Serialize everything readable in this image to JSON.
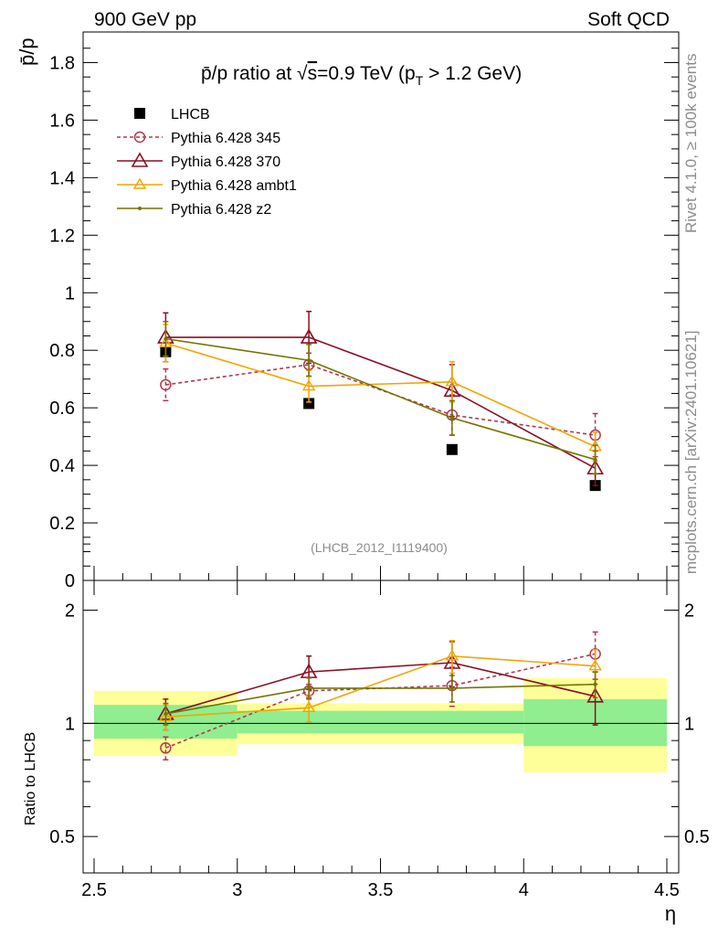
{
  "header": {
    "left": "900 GeV pp",
    "right": "Soft QCD"
  },
  "side": {
    "rivet": "Rivet 4.1.0, ≥ 100k events",
    "mcplots": "mcplots.cern.ch [arXiv:2401.10621]"
  },
  "colors": {
    "lhcb": "#000000",
    "p345": "#b0384f",
    "p370": "#8b0f24",
    "ambt1": "#f5a300",
    "z2": "#747400",
    "band_inner": "#90ee90",
    "band_outer": "#ffff99"
  },
  "chart_data": {
    "type": "scatter",
    "title_parts": {
      "prefix": "p̄/p ratio at √",
      "sqrt_arg": "s",
      "mid": "=0.9 TeV (p",
      "sub": "T",
      "suffix": " > 1.2 GeV)"
    },
    "ylabel": "p̄/p",
    "ratio_ylabel": "Ratio to LHCB",
    "xlabel": "η",
    "analysis_id": "(LHCB_2012_I1119400)",
    "xlim": [
      2.5,
      4.5
    ],
    "ylim": [
      0,
      1.9
    ],
    "ratio_ylim": [
      0.4,
      2.4
    ],
    "x_ticks": [
      "2.5",
      "3",
      "3.5",
      "4",
      "4.5"
    ],
    "y_ticks": [
      "0",
      "0.2",
      "0.4",
      "0.6",
      "0.8",
      "1",
      "1.2",
      "1.4",
      "1.6",
      "1.8"
    ],
    "ratio_ticks": [
      "0.5",
      "1",
      "2"
    ],
    "bins": [
      [
        2.5,
        3.0
      ],
      [
        3.0,
        3.5
      ],
      [
        3.5,
        4.0
      ],
      [
        4.0,
        4.5
      ]
    ],
    "series": [
      {
        "name": "LHCB",
        "key": "lhcb",
        "marker": "square",
        "dashed": false,
        "x": [
          2.75,
          3.25,
          3.75,
          4.25
        ],
        "y": [
          0.795,
          0.615,
          0.455,
          0.33
        ],
        "err": [
          0,
          0,
          0,
          0
        ]
      },
      {
        "name": "Pythia 6.428 345",
        "key": "p345",
        "marker": "circle",
        "dashed": true,
        "x": [
          2.75,
          3.25,
          3.75,
          4.25
        ],
        "y": [
          0.68,
          0.75,
          0.575,
          0.505
        ],
        "err": [
          0.055,
          0.04,
          0.07,
          0.075
        ],
        "ratio": [
          0.86,
          1.22,
          1.26,
          1.53
        ],
        "ratio_err": [
          0.06,
          0.05,
          0.15,
          0.22
        ]
      },
      {
        "name": "Pythia 6.428 370",
        "key": "p370",
        "marker": "triangle",
        "dashed": false,
        "x": [
          2.75,
          3.25,
          3.75,
          4.25
        ],
        "y": [
          0.845,
          0.845,
          0.66,
          0.39
        ],
        "err": [
          0.085,
          0.09,
          0.09,
          0.06
        ],
        "ratio": [
          1.06,
          1.37,
          1.45,
          1.18
        ],
        "ratio_err": [
          0.1,
          0.14,
          0.2,
          0.19
        ]
      },
      {
        "name": "Pythia 6.428 ambt1",
        "key": "ambt1",
        "marker": "triangle-small",
        "dashed": false,
        "x": [
          2.75,
          3.25,
          3.75,
          4.25
        ],
        "y": [
          0.825,
          0.675,
          0.69,
          0.465
        ],
        "err": [
          0.065,
          0.055,
          0.07,
          0.05
        ],
        "ratio": [
          1.04,
          1.1,
          1.51,
          1.42
        ],
        "ratio_err": [
          0.08,
          0.09,
          0.15,
          0.15
        ]
      },
      {
        "name": "Pythia 6.428 z2",
        "key": "z2",
        "marker": "dot",
        "dashed": false,
        "x": [
          2.75,
          3.25,
          3.75,
          4.25
        ],
        "y": [
          0.84,
          0.765,
          0.565,
          0.42
        ],
        "err": [
          0.06,
          0.055,
          0.06,
          0.05
        ],
        "ratio": [
          1.06,
          1.24,
          1.24,
          1.27
        ],
        "ratio_err": [
          0.07,
          0.08,
          0.1,
          0.1
        ]
      }
    ],
    "ratio_band": {
      "inner": [
        [
          0.91,
          1.12
        ],
        [
          0.94,
          1.08
        ],
        [
          0.94,
          1.08
        ],
        [
          0.87,
          1.16
        ]
      ],
      "outer": [
        [
          0.82,
          1.22
        ],
        [
          0.88,
          1.13
        ],
        [
          0.88,
          1.13
        ],
        [
          0.74,
          1.32
        ]
      ]
    }
  }
}
